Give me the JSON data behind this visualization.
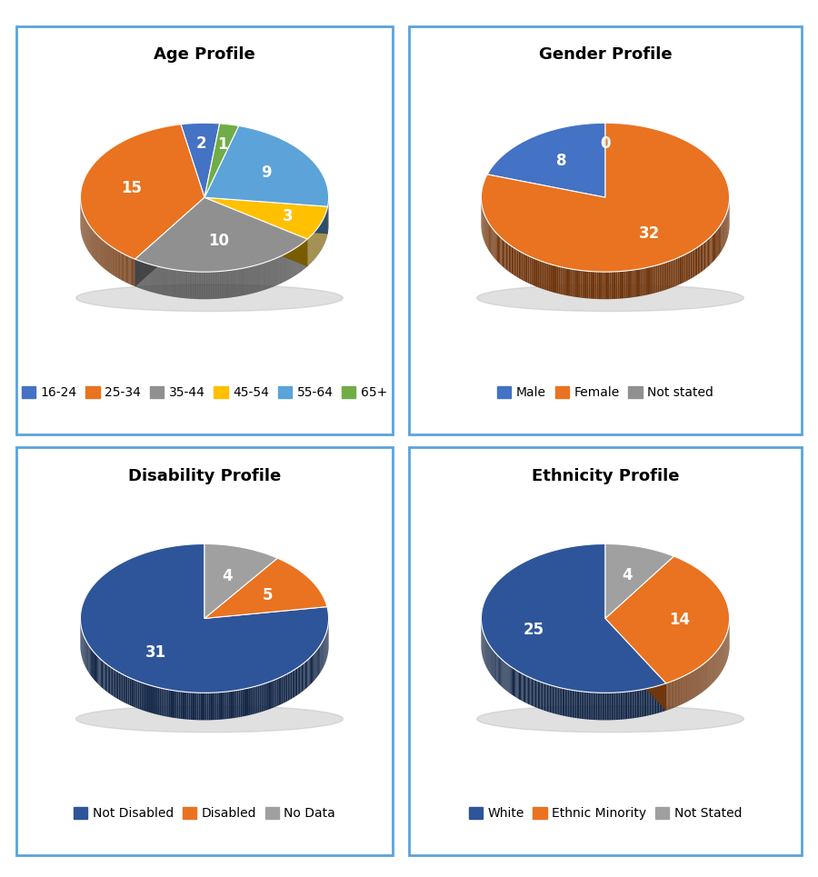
{
  "charts": [
    {
      "title": "Age Profile",
      "values": [
        2,
        15,
        10,
        3,
        9,
        1
      ],
      "colors": [
        "#4472C4",
        "#E97320",
        "#909090",
        "#FFC000",
        "#5BA3D9",
        "#70AD47"
      ],
      "legend_labels": [
        "16-24",
        "25-34",
        "35-44",
        "45-54",
        "55-64",
        "65+"
      ],
      "startangle": 83
    },
    {
      "title": "Gender Profile",
      "values": [
        8,
        32,
        0
      ],
      "colors": [
        "#4472C4",
        "#E97320",
        "#909090"
      ],
      "legend_labels": [
        "Male",
        "Female",
        "Not stated"
      ],
      "startangle": 90
    },
    {
      "title": "Disability Profile",
      "values": [
        31,
        5,
        4
      ],
      "colors": [
        "#2E5599",
        "#E97320",
        "#A0A0A0"
      ],
      "legend_labels": [
        "Not Disabled",
        "Disabled",
        "No Data"
      ],
      "startangle": 90
    },
    {
      "title": "Ethnicity Profile",
      "values": [
        25,
        14,
        4
      ],
      "colors": [
        "#2E5599",
        "#E97320",
        "#A0A0A0"
      ],
      "legend_labels": [
        "White",
        "Ethnic Minority",
        "Not Stated"
      ],
      "startangle": 90
    }
  ],
  "bg_color": "#FFFFFF",
  "border_color": "#5BA3D9",
  "title_fontsize": 13,
  "label_fontsize": 12,
  "legend_fontsize": 10,
  "yscale": 0.6,
  "depth": 0.22
}
